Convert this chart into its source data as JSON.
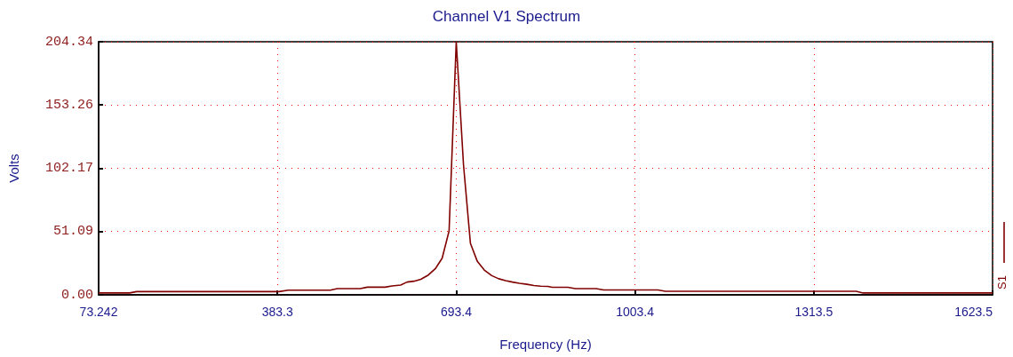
{
  "chart_data": {
    "type": "line",
    "title": "Channel V1 Spectrum",
    "xlabel": "Frequency (Hz)",
    "ylabel": "Volts",
    "xlim": [
      73.242,
      1623.5
    ],
    "xticks": [
      73.242,
      383.3,
      693.4,
      1003.4,
      1313.5,
      1623.5
    ],
    "ylim": [
      0,
      204.34
    ],
    "yticks": [
      {
        "value": 0,
        "label": "0.00"
      },
      51.09,
      102.17,
      153.26,
      204.34
    ],
    "grid": true,
    "legend": "right",
    "marker": "none",
    "line_style": "solid",
    "series": [
      {
        "name": "S1",
        "color": "#800000",
        "x": [
          73.242,
          127,
          139,
          386,
          402,
          475,
          487,
          527,
          539,
          570,
          582,
          597,
          608,
          620,
          632,
          645,
          657,
          669,
          681,
          693.4,
          706,
          718,
          730,
          742,
          755,
          767,
          779,
          791,
          803,
          816,
          828,
          840,
          852,
          860,
          887,
          900,
          936,
          949,
          1043,
          1056,
          1387,
          1399,
          1623.5
        ],
        "values": [
          1.5,
          1.5,
          2.6,
          2.6,
          3.8,
          3.8,
          5.0,
          5.0,
          6.2,
          6.2,
          7.2,
          7.9,
          10.3,
          11,
          12.5,
          16,
          21,
          29.6,
          51.6,
          204.3,
          105,
          41.6,
          27,
          20,
          15.5,
          13,
          11.5,
          10.3,
          9.3,
          8.5,
          7.5,
          7.0,
          6.8,
          6.1,
          6.1,
          5.0,
          5.0,
          3.9,
          3.9,
          2.9,
          2.9,
          1.5,
          1.5
        ]
      }
    ]
  }
}
